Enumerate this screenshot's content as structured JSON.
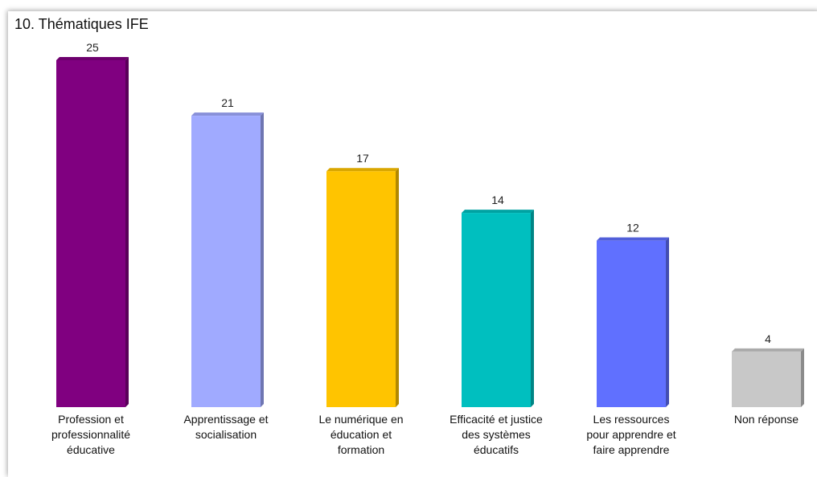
{
  "chart_data": {
    "type": "bar",
    "title": "10. Thématiques IFE",
    "categories": [
      "Profession et\nprofessionnalité\néducative",
      "Apprentissage et\nsocialisation",
      "Le numérique en\néducation et\nformation",
      "Efficacité et justice\ndes systèmes\néducatifs",
      "Les ressources\npour apprendre et\nfaire apprendre",
      "Non réponse"
    ],
    "values": [
      25,
      21,
      17,
      14,
      12,
      4
    ],
    "colors": [
      "#800080",
      "#a0aaff",
      "#ffc400",
      "#00bfbf",
      "#6070ff",
      "#c8c8c8"
    ]
  }
}
